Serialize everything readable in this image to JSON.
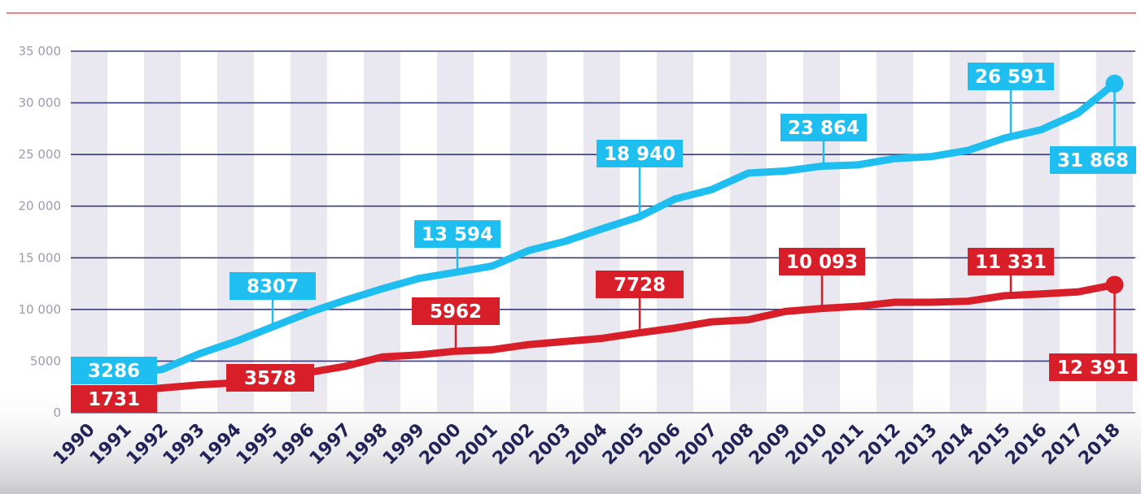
{
  "chart_data": {
    "type": "line",
    "title": "",
    "xlabel": "",
    "ylabel": "",
    "ylim": [
      0,
      35000
    ],
    "y_ticks": [
      "0",
      "5000",
      "10 000",
      "15 000",
      "20 000",
      "25 000",
      "30 000",
      "35 000"
    ],
    "grid": "horizontal",
    "x": [
      1990,
      1991,
      1992,
      1993,
      1994,
      1995,
      1996,
      1997,
      1998,
      1999,
      2000,
      2001,
      2002,
      2003,
      2004,
      2005,
      2006,
      2007,
      2008,
      2009,
      2010,
      2011,
      2012,
      2013,
      2014,
      2015,
      2016,
      2017,
      2018
    ],
    "series": [
      {
        "color": "#1ebef0",
        "values": [
          3286,
          3700,
          4200,
          5700,
          6900,
          8307,
          9700,
          10900,
          12000,
          13000,
          13594,
          14200,
          15700,
          16600,
          17800,
          18940,
          20700,
          21600,
          23200,
          23400,
          23864,
          24000,
          24600,
          24800,
          25400,
          26591,
          27400,
          29000,
          31868
        ],
        "data_labels": [
          {
            "year": 1990,
            "text": "3286"
          },
          {
            "year": 1995,
            "text": "8307"
          },
          {
            "year": 2000,
            "text": "13 594"
          },
          {
            "year": 2005,
            "text": "18 940"
          },
          {
            "year": 2010,
            "text": "23 864"
          },
          {
            "year": 2015,
            "text": "26 591"
          },
          {
            "year": 2018,
            "text": "31 868"
          }
        ]
      },
      {
        "color": "#d81e28",
        "values": [
          1731,
          2100,
          2400,
          2700,
          2900,
          3578,
          3900,
          4500,
          5400,
          5600,
          5962,
          6100,
          6600,
          6900,
          7200,
          7728,
          8200,
          8800,
          9000,
          9800,
          10093,
          10300,
          10700,
          10700,
          10800,
          11331,
          11500,
          11700,
          12391
        ],
        "data_labels": [
          {
            "year": 1990,
            "text": "1731"
          },
          {
            "year": 1995,
            "text": "3578"
          },
          {
            "year": 2000,
            "text": "5962"
          },
          {
            "year": 2005,
            "text": "7728"
          },
          {
            "year": 2010,
            "text": "10 093"
          },
          {
            "year": 2015,
            "text": "11 331"
          },
          {
            "year": 2018,
            "text": "12 391"
          }
        ]
      }
    ]
  },
  "colors": {
    "grid": "#3b3b78",
    "stripe": "#e9e7ef",
    "top_rule": "#e05a5a",
    "axis_text": "#23235a"
  }
}
